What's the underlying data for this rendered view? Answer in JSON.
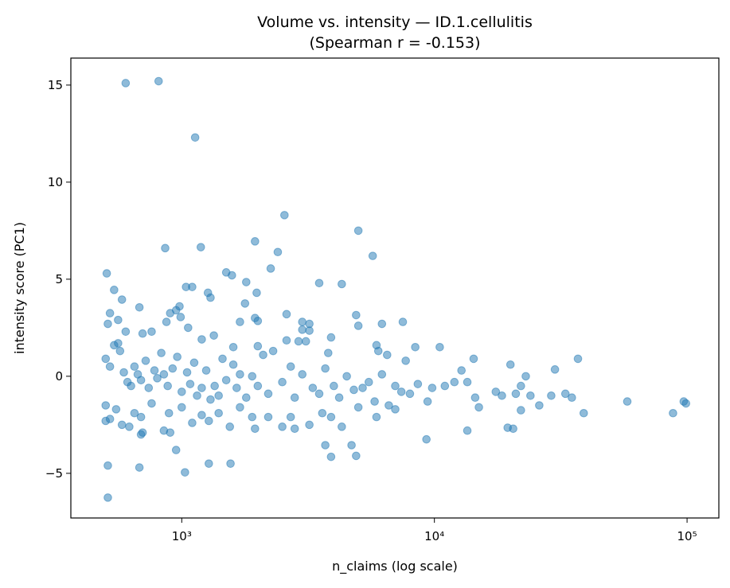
{
  "chart_data": {
    "type": "scatter",
    "title": "Volume vs. intensity — ID.1.cellulitis",
    "subtitle": "(Spearman r = -0.153)",
    "x_label": "n_claims (log scale)",
    "y_label": "intensity score (PC1)",
    "x_scale": "log",
    "color": "#1f77b4",
    "xlim": [
      364,
      133600
    ],
    "ylim": [
      -7.3,
      16.39
    ],
    "xticks": [
      {
        "value": 1000,
        "label": "10³"
      },
      {
        "value": 10000,
        "label": "10⁴"
      },
      {
        "value": 100000,
        "label": "10⁵"
      }
    ],
    "yticks": [
      {
        "value": -5,
        "label": "−5"
      },
      0,
      5,
      10,
      15
    ],
    "x": [
      600,
      810,
      1130,
      2550,
      5000,
      1950,
      860,
      1190,
      2400,
      5700,
      2250,
      505,
      1500,
      1580,
      1800,
      1040,
      1100,
      1270,
      3500,
      4300,
      1980,
      540,
      580,
      1300,
      1780,
      680,
      980,
      2600,
      4900,
      520,
      900,
      950,
      990,
      1950,
      2000,
      3000,
      3200,
      5000,
      6200,
      7500,
      3000,
      3200,
      560,
      510,
      600,
      700,
      760,
      870,
      1060,
      1340,
      1200,
      1700,
      3900,
      2900,
      3100,
      2600,
      1600,
      2000,
      5900,
      8400,
      10500,
      6000,
      6500,
      7700,
      12800,
      14300,
      20000,
      23000,
      30000,
      37000,
      500,
      520,
      540,
      560,
      570,
      590,
      610,
      630,
      650,
      670,
      690,
      720,
      740,
      780,
      800,
      830,
      850,
      880,
      920,
      960,
      1000,
      1050,
      1080,
      1120,
      1150,
      1200,
      1250,
      1300,
      1350,
      1400,
      1450,
      1500,
      1600,
      1650,
      1700,
      1800,
      1900,
      2000,
      2100,
      2200,
      2300,
      2500,
      2700,
      2800,
      3000,
      3300,
      3500,
      3700,
      3800,
      4000,
      4200,
      4500,
      4800,
      5200,
      5500,
      5800,
      6200,
      6600,
      7000,
      7400,
      8000,
      8600,
      9400,
      9800,
      11000,
      12000,
      13500,
      14500,
      15000,
      17500,
      18500,
      21000,
      22000,
      24000,
      26000,
      29000,
      33000,
      35000,
      58000,
      88000,
      97000,
      99000,
      39000,
      22000,
      500,
      500,
      520,
      550,
      580,
      620,
      650,
      690,
      700,
      690,
      760,
      850,
      890,
      900,
      1000,
      1100,
      1200,
      1280,
      1400,
      1550,
      1700,
      1900,
      1950,
      2200,
      2500,
      2700,
      2800,
      3200,
      3600,
      3900,
      4300,
      5000,
      5900,
      7000,
      13500,
      19500,
      20500,
      9300,
      3700,
      3900,
      4700,
      4900,
      950,
      1280,
      1560,
      1030,
      510,
      680,
      510
    ],
    "values": [
      15.1,
      15.2,
      12.3,
      8.3,
      7.5,
      6.95,
      6.6,
      6.65,
      6.4,
      6.2,
      5.55,
      5.3,
      5.35,
      5.2,
      4.85,
      4.6,
      4.6,
      4.3,
      4.8,
      4.75,
      4.3,
      4.45,
      3.95,
      4.05,
      3.75,
      3.55,
      3.6,
      3.2,
      3.15,
      3.25,
      3.25,
      3.4,
      3.05,
      3.0,
      2.85,
      2.8,
      2.7,
      2.6,
      2.7,
      2.8,
      2.4,
      2.35,
      2.9,
      2.7,
      2.3,
      2.2,
      2.3,
      2.8,
      2.5,
      2.1,
      1.9,
      2.8,
      2.0,
      1.8,
      1.8,
      1.85,
      1.5,
      1.55,
      1.6,
      1.5,
      1.5,
      1.3,
      1.1,
      0.8,
      0.3,
      0.9,
      0.6,
      0,
      0.35,
      0.9,
      0.9,
      0.5,
      1.6,
      1.7,
      1.3,
      0.2,
      -0.3,
      -0.5,
      0.5,
      0.1,
      -0.2,
      0.8,
      -0.6,
      0.3,
      -0.1,
      1.2,
      0.1,
      -0.5,
      0.4,
      1.0,
      -0.8,
      0.2,
      -0.4,
      0.7,
      -1.0,
      -0.6,
      0.3,
      -1.2,
      -0.5,
      -1.0,
      0.9,
      -0.2,
      0.6,
      -0.6,
      0.1,
      -1.1,
      0.0,
      -0.5,
      1.1,
      -0.9,
      1.3,
      -0.3,
      0.5,
      -1.1,
      0.1,
      -0.6,
      -0.9,
      0.4,
      1.2,
      -0.5,
      -1.1,
      0,
      -0.7,
      -0.6,
      -0.3,
      -1.3,
      0.1,
      -1.5,
      -0.5,
      -0.8,
      -0.9,
      -0.4,
      -1.3,
      -0.6,
      -0.5,
      -0.3,
      -0.3,
      -1.1,
      -1.6,
      -0.8,
      -1.0,
      -0.9,
      -0.5,
      -1.0,
      -1.5,
      -1.0,
      -0.9,
      -1.1,
      -1.3,
      -1.9,
      -1.3,
      -1.4,
      -1.9,
      -1.75,
      -1.5,
      -2.3,
      -2.2,
      -1.7,
      -2.5,
      -2.6,
      -1.9,
      -2.1,
      -2.9,
      -3.0,
      -1.4,
      -2.8,
      -1.9,
      -2.9,
      -1.6,
      -2.4,
      -2.0,
      -2.3,
      -1.9,
      -2.6,
      -1.6,
      -2.1,
      -2.7,
      -2.1,
      -2.6,
      -2.1,
      -2.7,
      -2.5,
      -1.9,
      -2.1,
      -2.6,
      -1.6,
      -2.1,
      -1.7,
      -2.8,
      -2.65,
      -2.7,
      -3.25,
      -3.55,
      -4.15,
      -3.55,
      -4.1,
      -3.8,
      -4.5,
      -4.5,
      -4.95,
      -4.6,
      -4.7,
      -6.25
    ]
  }
}
